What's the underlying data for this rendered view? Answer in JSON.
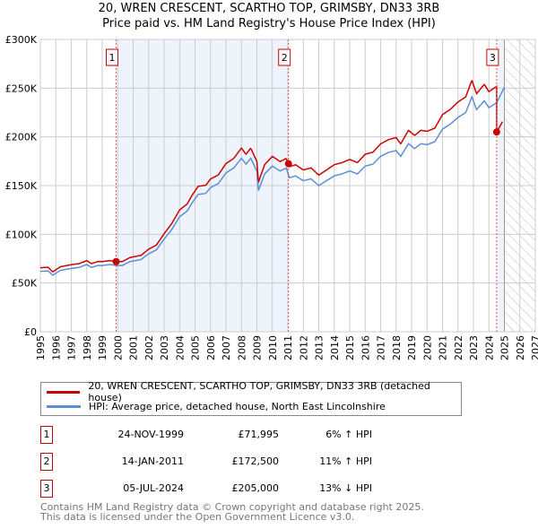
{
  "chart_data": {
    "type": "line",
    "title": "20, WREN CRESCENT, SCARTHO TOP, GRIMSBY, DN33 3RB",
    "subtitle": "Price paid vs. HM Land Registry's House Price Index (HPI)",
    "xlim": [
      1995,
      2027
    ],
    "ylim": [
      0,
      300000
    ],
    "x_ticks": [
      "1995",
      "1996",
      "1997",
      "1998",
      "1999",
      "2000",
      "2001",
      "2002",
      "2003",
      "2004",
      "2005",
      "2006",
      "2007",
      "2008",
      "2009",
      "2010",
      "2011",
      "2012",
      "2013",
      "2014",
      "2015",
      "2016",
      "2017",
      "2018",
      "2019",
      "2020",
      "2021",
      "2022",
      "2023",
      "2024",
      "2025",
      "2026",
      "2027"
    ],
    "y_ticks": [
      {
        "v": 0,
        "label": "£0"
      },
      {
        "v": 50000,
        "label": "£50K"
      },
      {
        "v": 100000,
        "label": "£100K"
      },
      {
        "v": 150000,
        "label": "£150K"
      },
      {
        "v": 200000,
        "label": "£200K"
      },
      {
        "v": 250000,
        "label": "£250K"
      },
      {
        "v": 300000,
        "label": "£300K"
      }
    ],
    "grid": true,
    "forecast_start": 2025,
    "colors": {
      "price": "#cc0000",
      "hpi": "#5b8fd6",
      "shade": "#eef3fc"
    },
    "hpi_series": {
      "name": "HPI: Average price, detached house, North East Lincolnshire",
      "x": [
        1995,
        1995.5,
        1995.8,
        1996.3,
        1997,
        1997.5,
        1998,
        1998.3,
        1998.7,
        1999,
        1999.5,
        1999.9,
        2000.3,
        2000.8,
        2001.5,
        2002,
        2002.5,
        2003,
        2003.5,
        2004,
        2004.5,
        2004.8,
        2005.2,
        2005.7,
        2006,
        2006.5,
        2007,
        2007.5,
        2008,
        2008.3,
        2008.6,
        2009,
        2009.1,
        2009.5,
        2010,
        2010.5,
        2010.9,
        2011.1,
        2011.5,
        2012,
        2012.5,
        2013,
        2013.5,
        2014,
        2014.5,
        2015,
        2015.5,
        2016,
        2016.5,
        2017,
        2017.5,
        2018,
        2018.3,
        2018.8,
        2019.2,
        2019.6,
        2020,
        2020.5,
        2021,
        2021.5,
        2022,
        2022.5,
        2022.9,
        2023.2,
        2023.7,
        2024,
        2024.5,
        2025
      ],
      "y": [
        62000,
        62500,
        58000,
        63000,
        65000,
        66000,
        69000,
        66000,
        68000,
        68000,
        69000,
        68000,
        68000,
        72000,
        74000,
        80000,
        84000,
        95000,
        105000,
        118000,
        124000,
        132000,
        141000,
        142000,
        148000,
        152000,
        163000,
        168000,
        178000,
        172000,
        178000,
        165000,
        145000,
        162000,
        170000,
        165000,
        168000,
        158000,
        160000,
        155000,
        157000,
        150000,
        155000,
        160000,
        162000,
        165000,
        162000,
        170000,
        172000,
        180000,
        184000,
        186000,
        180000,
        193000,
        188000,
        193000,
        192000,
        195000,
        208000,
        213000,
        220000,
        225000,
        241000,
        228000,
        237000,
        230000,
        235000,
        251000
      ]
    },
    "price_series": {
      "name": "20, WREN CRESCENT, SCARTHO TOP, GRIMSBY, DN33 3RB (detached house)",
      "end_x": 2024.9
    },
    "sales": [
      {
        "n": "1",
        "x": 1999.9,
        "date": "24-NOV-1999",
        "price": 71995,
        "price_label": "£71,995",
        "hpi_label": "6% ↑ HPI"
      },
      {
        "n": "2",
        "x": 2011.04,
        "date": "14-JAN-2011",
        "price": 172500,
        "price_label": "£172,500",
        "hpi_label": "11% ↑ HPI"
      },
      {
        "n": "3",
        "x": 2024.5,
        "date": "05-JUL-2024",
        "price": 205000,
        "price_label": "£205,000",
        "hpi_label": "13% ↓ HPI"
      }
    ]
  },
  "legend": {
    "price": "20, WREN CRESCENT, SCARTHO TOP, GRIMSBY, DN33 3RB (detached house)",
    "hpi": "HPI: Average price, detached house, North East Lincolnshire"
  },
  "footer": {
    "line1": "Contains HM Land Registry data © Crown copyright and database right 2025.",
    "line2": "This data is licensed under the Open Government Licence v3.0."
  }
}
